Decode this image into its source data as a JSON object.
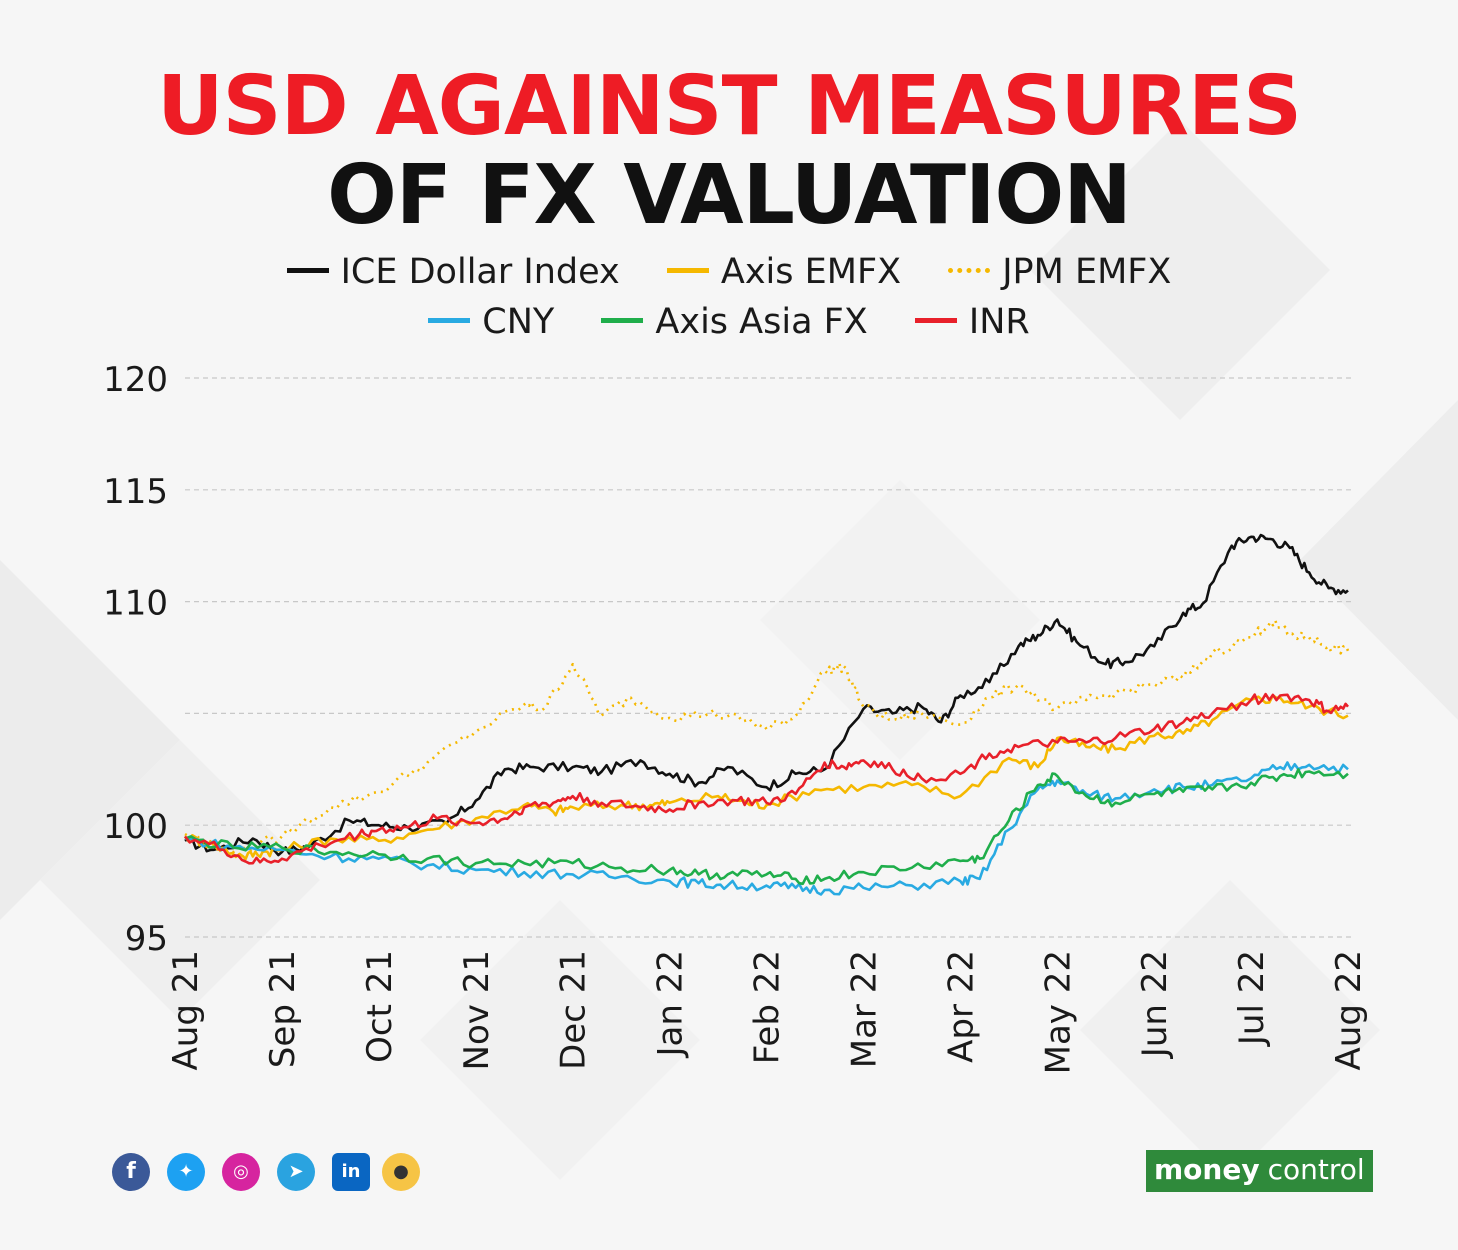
{
  "header": {
    "title_line1": "USD AGAINST MEASURES",
    "title_line2": "OF FX VALUATION"
  },
  "legend": {
    "row1": [
      {
        "label": "ICE Dollar Index",
        "color": "#111111",
        "style": "solid"
      },
      {
        "label": "Axis EMFX",
        "color": "#f5b800",
        "style": "solid"
      },
      {
        "label": "JPM EMFX",
        "color": "#f5b800",
        "style": "dotted"
      }
    ],
    "row2": [
      {
        "label": "CNY",
        "color": "#29aae2",
        "style": "solid"
      },
      {
        "label": "Axis Asia FX",
        "color": "#1fae4b",
        "style": "solid"
      },
      {
        "label": "INR",
        "color": "#e8202a",
        "style": "solid"
      }
    ]
  },
  "footer": {
    "social_icons": [
      "facebook-icon",
      "twitter-icon",
      "instagram-icon",
      "telegram-icon",
      "linkedin-icon",
      "koo-icon"
    ],
    "logo_part1": "money",
    "logo_part2": "control"
  },
  "chart_data": {
    "type": "line",
    "ylim": [
      95,
      120
    ],
    "yticks": [
      120,
      115,
      110,
      100,
      95
    ],
    "gridlines": [
      120,
      115,
      110,
      105,
      100,
      95
    ],
    "x_tick_labels": [
      "Aug 21",
      "Sep 21",
      "Oct 21",
      "Nov 21",
      "Dec 21",
      "Jan 22",
      "Feb 22",
      "Mar 22",
      "Apr 22",
      "May 22",
      "Jun 22",
      "Jul 22",
      "Aug 22"
    ],
    "series": [
      {
        "name": "ICE Dollar Index",
        "color": "#111111",
        "style": "solid",
        "values": [
          [
            0,
            99.3
          ],
          [
            0.3,
            98.9
          ],
          [
            0.7,
            99.4
          ],
          [
            1,
            98.8
          ],
          [
            1.3,
            99.1
          ],
          [
            1.7,
            100.2
          ],
          [
            2,
            100.0
          ],
          [
            2.3,
            99.9
          ],
          [
            2.7,
            100.1
          ],
          [
            3,
            101.1
          ],
          [
            3.3,
            102.5
          ],
          [
            3.6,
            102.6
          ],
          [
            4,
            102.6
          ],
          [
            4.3,
            102.4
          ],
          [
            4.7,
            102.9
          ],
          [
            5,
            102.3
          ],
          [
            5.3,
            101.9
          ],
          [
            5.6,
            102.6
          ],
          [
            6,
            101.7
          ],
          [
            6.3,
            102.3
          ],
          [
            6.6,
            102.5
          ],
          [
            7,
            105.2
          ],
          [
            7.3,
            105.0
          ],
          [
            7.6,
            105.3
          ],
          [
            7.8,
            104.6
          ],
          [
            8,
            105.8
          ],
          [
            8.3,
            106.4
          ],
          [
            8.6,
            108.0
          ],
          [
            8.8,
            108.5
          ],
          [
            9,
            109.2
          ],
          [
            9.2,
            108.2
          ],
          [
            9.5,
            107.2
          ],
          [
            9.7,
            107.3
          ],
          [
            10,
            108.0
          ],
          [
            10.3,
            109.5
          ],
          [
            10.5,
            109.9
          ],
          [
            10.8,
            112.5
          ],
          [
            11,
            112.9
          ],
          [
            11.2,
            112.8
          ],
          [
            11.4,
            112.4
          ],
          [
            11.6,
            111.3
          ],
          [
            11.8,
            110.6
          ],
          [
            12,
            110.5
          ]
        ]
      },
      {
        "name": "Axis EMFX",
        "color": "#f5b800",
        "style": "solid",
        "values": [
          [
            0,
            99.5
          ],
          [
            0.3,
            99.1
          ],
          [
            0.6,
            98.6
          ],
          [
            0.8,
            98.8
          ],
          [
            1,
            98.9
          ],
          [
            1.5,
            99.4
          ],
          [
            2,
            99.3
          ],
          [
            2.5,
            99.8
          ],
          [
            3,
            100.3
          ],
          [
            3.5,
            100.9
          ],
          [
            3.8,
            100.6
          ],
          [
            4,
            100.8
          ],
          [
            4.5,
            100.9
          ],
          [
            4.8,
            100.9
          ],
          [
            5,
            101.0
          ],
          [
            5.5,
            101.3
          ],
          [
            5.8,
            101.0
          ],
          [
            6,
            100.9
          ],
          [
            6.5,
            101.6
          ],
          [
            7,
            101.7
          ],
          [
            7.5,
            101.8
          ],
          [
            8,
            101.3
          ],
          [
            8.5,
            103.0
          ],
          [
            8.8,
            102.6
          ],
          [
            9,
            103.9
          ],
          [
            9.3,
            103.5
          ],
          [
            9.6,
            103.4
          ],
          [
            10,
            104.0
          ],
          [
            10.3,
            104.1
          ],
          [
            10.6,
            104.7
          ],
          [
            11,
            105.6
          ],
          [
            11.3,
            105.7
          ],
          [
            11.6,
            105.3
          ],
          [
            12,
            104.9
          ]
        ]
      },
      {
        "name": "JPM EMFX",
        "color": "#f5b800",
        "style": "dotted",
        "values": [
          [
            0,
            99.6
          ],
          [
            0.5,
            98.8
          ],
          [
            1,
            99.5
          ],
          [
            1.5,
            100.8
          ],
          [
            2,
            101.5
          ],
          [
            2.5,
            102.8
          ],
          [
            3,
            104.2
          ],
          [
            3.5,
            105.4
          ],
          [
            3.7,
            105.2
          ],
          [
            4,
            107.2
          ],
          [
            4.3,
            104.9
          ],
          [
            4.6,
            105.7
          ],
          [
            5,
            104.8
          ],
          [
            5.4,
            105.0
          ],
          [
            5.8,
            104.7
          ],
          [
            6,
            104.3
          ],
          [
            6.3,
            104.9
          ],
          [
            6.6,
            106.9
          ],
          [
            6.8,
            107.1
          ],
          [
            7,
            105.3
          ],
          [
            7.3,
            104.7
          ],
          [
            7.6,
            105.0
          ],
          [
            8,
            104.5
          ],
          [
            8.3,
            105.7
          ],
          [
            8.6,
            106.3
          ],
          [
            9,
            105.2
          ],
          [
            9.3,
            105.6
          ],
          [
            9.6,
            105.9
          ],
          [
            10,
            106.3
          ],
          [
            10.3,
            106.6
          ],
          [
            10.6,
            107.7
          ],
          [
            11,
            108.4
          ],
          [
            11.2,
            109.1
          ],
          [
            11.4,
            108.5
          ],
          [
            11.6,
            108.4
          ],
          [
            11.8,
            108.0
          ],
          [
            12,
            107.8
          ]
        ]
      },
      {
        "name": "CNY",
        "color": "#29aae2",
        "style": "solid",
        "values": [
          [
            0,
            99.4
          ],
          [
            0.5,
            99.0
          ],
          [
            1,
            98.9
          ],
          [
            1.5,
            98.6
          ],
          [
            2,
            98.5
          ],
          [
            2.5,
            98.2
          ],
          [
            3,
            98.0
          ],
          [
            3.5,
            97.9
          ],
          [
            4,
            97.8
          ],
          [
            4.5,
            97.7
          ],
          [
            5,
            97.5
          ],
          [
            5.3,
            97.4
          ],
          [
            5.6,
            97.3
          ],
          [
            6,
            97.3
          ],
          [
            6.3,
            97.2
          ],
          [
            6.6,
            97.1
          ],
          [
            7,
            97.2
          ],
          [
            7.5,
            97.3
          ],
          [
            8,
            97.5
          ],
          [
            8.2,
            97.6
          ],
          [
            8.5,
            99.8
          ],
          [
            8.8,
            101.6
          ],
          [
            9,
            102.0
          ],
          [
            9.3,
            101.4
          ],
          [
            9.6,
            101.2
          ],
          [
            10,
            101.6
          ],
          [
            10.3,
            101.7
          ],
          [
            10.6,
            101.8
          ],
          [
            11,
            102.1
          ],
          [
            11.3,
            102.6
          ],
          [
            11.6,
            102.7
          ],
          [
            12,
            102.5
          ]
        ]
      },
      {
        "name": "Axis Asia FX",
        "color": "#1fae4b",
        "style": "solid",
        "values": [
          [
            0,
            99.4
          ],
          [
            0.5,
            99.0
          ],
          [
            1,
            99.0
          ],
          [
            1.5,
            98.8
          ],
          [
            2,
            98.7
          ],
          [
            2.5,
            98.5
          ],
          [
            3,
            98.3
          ],
          [
            3.5,
            98.3
          ],
          [
            4,
            98.3
          ],
          [
            4.5,
            98.1
          ],
          [
            5,
            98.0
          ],
          [
            5.3,
            97.8
          ],
          [
            5.6,
            97.8
          ],
          [
            6,
            97.8
          ],
          [
            6.3,
            97.6
          ],
          [
            6.6,
            97.6
          ],
          [
            7,
            97.9
          ],
          [
            7.5,
            98.1
          ],
          [
            8,
            98.4
          ],
          [
            8.2,
            98.5
          ],
          [
            8.5,
            100.2
          ],
          [
            8.8,
            101.8
          ],
          [
            9,
            102.2
          ],
          [
            9.3,
            101.3
          ],
          [
            9.6,
            101.0
          ],
          [
            10,
            101.4
          ],
          [
            10.3,
            101.5
          ],
          [
            10.6,
            101.6
          ],
          [
            11,
            101.9
          ],
          [
            11.3,
            102.2
          ],
          [
            11.6,
            102.4
          ],
          [
            12,
            102.3
          ]
        ]
      },
      {
        "name": "INR",
        "color": "#e8202a",
        "style": "solid",
        "values": [
          [
            0,
            99.5
          ],
          [
            0.4,
            98.9
          ],
          [
            0.7,
            98.3
          ],
          [
            1,
            98.5
          ],
          [
            1.4,
            99.1
          ],
          [
            1.8,
            99.6
          ],
          [
            2,
            99.8
          ],
          [
            2.3,
            99.9
          ],
          [
            2.6,
            100.3
          ],
          [
            3,
            100.1
          ],
          [
            3.3,
            100.3
          ],
          [
            3.5,
            100.8
          ],
          [
            3.8,
            101.0
          ],
          [
            4,
            101.3
          ],
          [
            4.3,
            101.0
          ],
          [
            4.7,
            100.8
          ],
          [
            5,
            100.7
          ],
          [
            5.3,
            101.0
          ],
          [
            5.7,
            101.1
          ],
          [
            6,
            101.0
          ],
          [
            6.3,
            101.4
          ],
          [
            6.6,
            102.8
          ],
          [
            6.8,
            102.6
          ],
          [
            7,
            102.9
          ],
          [
            7.3,
            102.5
          ],
          [
            7.6,
            102.1
          ],
          [
            8,
            102.3
          ],
          [
            8.3,
            103.2
          ],
          [
            8.6,
            103.5
          ],
          [
            9,
            103.7
          ],
          [
            9.3,
            103.7
          ],
          [
            9.6,
            103.9
          ],
          [
            10,
            104.3
          ],
          [
            10.3,
            104.6
          ],
          [
            10.6,
            105.0
          ],
          [
            11,
            105.6
          ],
          [
            11.3,
            105.8
          ],
          [
            11.6,
            105.6
          ],
          [
            11.8,
            105.1
          ],
          [
            12,
            105.3
          ]
        ]
      }
    ]
  }
}
